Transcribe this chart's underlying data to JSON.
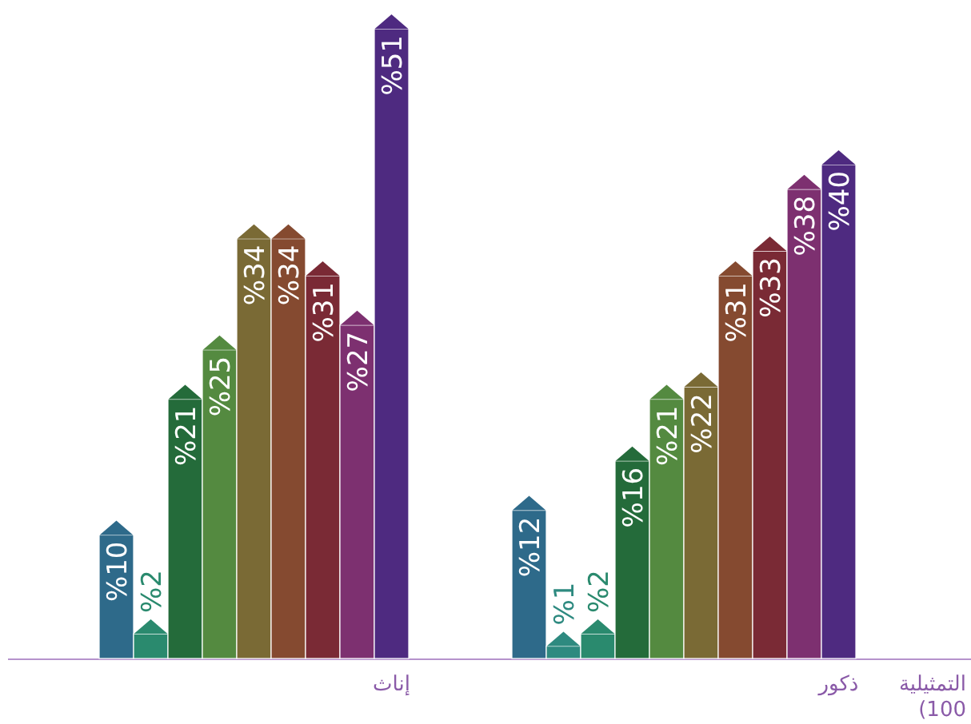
{
  "chart_data": {
    "type": "bar",
    "categories": [
      null,
      null,
      null,
      null,
      null,
      null,
      null,
      null,
      "إناث",
      null,
      null,
      null,
      null,
      null,
      null,
      null,
      null,
      null,
      null,
      null,
      null,
      "ذكور"
    ],
    "values": [
      10,
      2,
      21,
      25,
      34,
      34,
      31,
      27,
      51,
      null,
      null,
      null,
      12,
      1,
      2,
      16,
      21,
      22,
      31,
      33,
      38,
      40
    ],
    "colors": [
      "#2e6a8a",
      "#2a8a6e",
      "#246b3a",
      "#548a40",
      "#7a6a35",
      "#854a30",
      "#7a2a35",
      "#7d3070",
      "#4e2a80",
      null,
      null,
      null,
      "#2e6a8a",
      "#2e8a80",
      "#2a8a6e",
      "#246b3a",
      "#548a40",
      "#7a6a35",
      "#854a30",
      "#7a2a35",
      "#7d3070",
      "#4e2a80"
    ],
    "value_labels": [
      "%10",
      "%2",
      "%21",
      "%25",
      "%34",
      "%34",
      "%31",
      "%27",
      "%51",
      null,
      null,
      null,
      "%12",
      "%1",
      "%2",
      "%16",
      "%21",
      "%22",
      "%31",
      "%33",
      "%38",
      "%40"
    ],
    "annotations": [
      "التمثيلية (100"
    ]
  }
}
